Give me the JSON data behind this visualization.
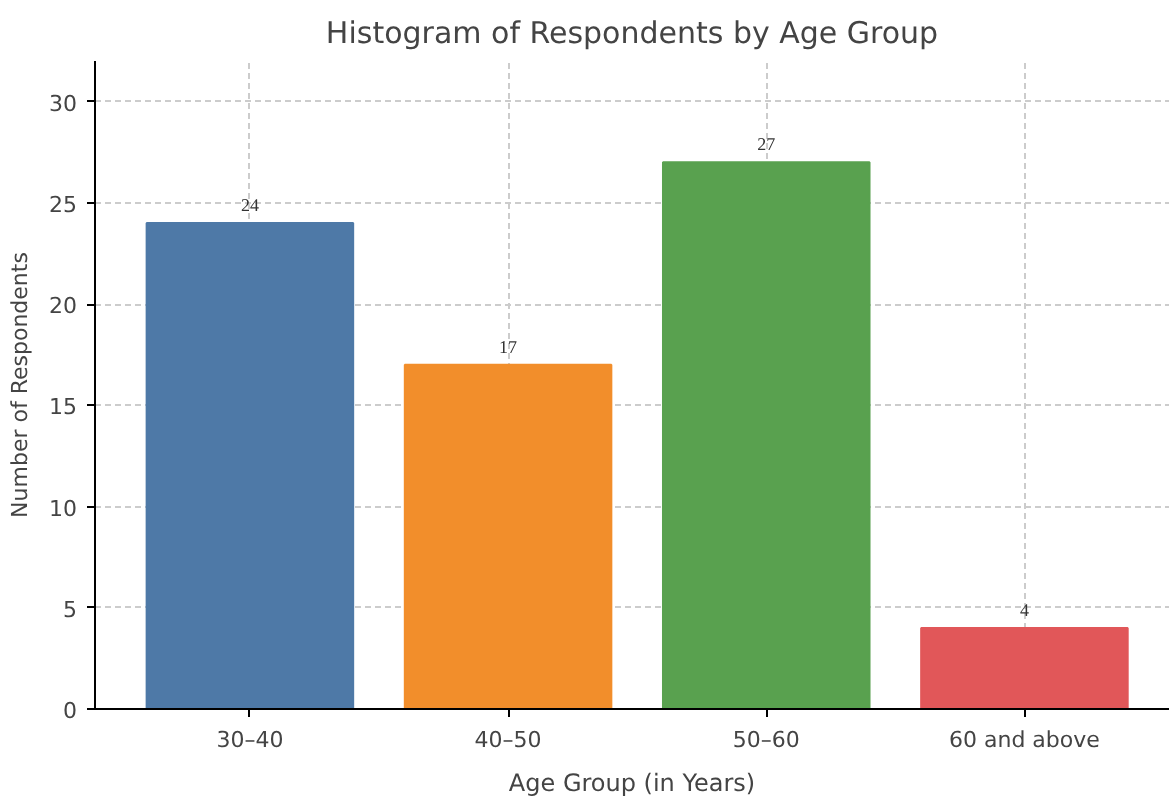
{
  "chart_data": {
    "type": "bar",
    "title": "Histogram of Respondents by Age Group",
    "xlabel": "Age Group (in Years)",
    "ylabel": "Number of Respondents",
    "categories": [
      "30–40",
      "40–50",
      "50–60",
      "60 and above"
    ],
    "values": [
      24,
      17,
      27,
      4
    ],
    "colors": [
      "#4e79a7",
      "#f28e2b",
      "#59a14f",
      "#e15759"
    ],
    "ylim": [
      0,
      32
    ],
    "yticks": [
      0,
      5,
      10,
      15,
      20,
      25,
      30
    ],
    "grid": true,
    "data_labels": true
  }
}
